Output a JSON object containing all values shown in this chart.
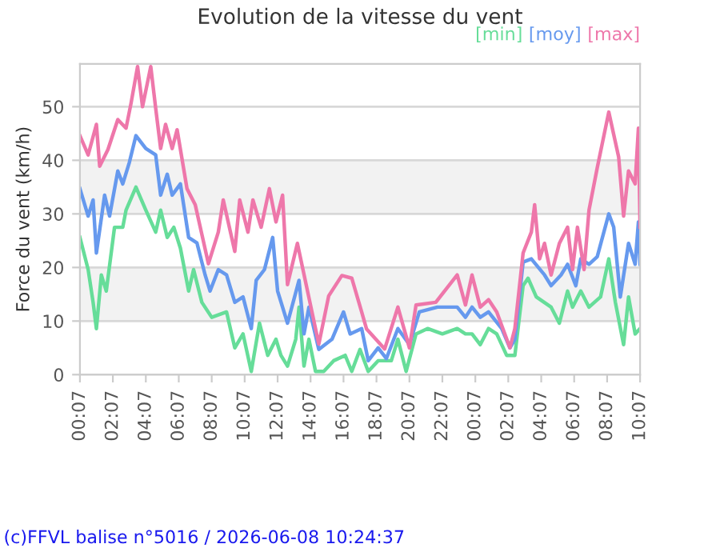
{
  "chart_data": {
    "type": "line",
    "title": "Evolution de la vitesse du vent",
    "ylabel": "Force du vent (km/h)",
    "xlim": [
      "2026-06-07T00:07",
      "2026-06-08T10:07"
    ],
    "ylim": [
      0,
      58
    ],
    "xticks": [
      {
        "value": "2026-06-07T00:07",
        "label": "00:07"
      },
      {
        "value": "2026-06-07T02:07",
        "label": "02:07"
      },
      {
        "value": "2026-06-07T04:07",
        "label": "04:07"
      },
      {
        "value": "2026-06-07T06:07",
        "label": "06:07"
      },
      {
        "value": "2026-06-07T08:07",
        "label": "08:07"
      },
      {
        "value": "2026-06-07T10:07",
        "label": "10:07"
      },
      {
        "value": "2026-06-07T12:07",
        "label": "12:07"
      },
      {
        "value": "2026-06-07T14:07",
        "label": "14:07"
      },
      {
        "value": "2026-06-07T16:07",
        "label": "16:07"
      },
      {
        "value": "2026-06-07T18:07",
        "label": "18:07"
      },
      {
        "value": "2026-06-07T20:07",
        "label": "20:07"
      },
      {
        "value": "2026-06-07T22:07",
        "label": "22:07"
      },
      {
        "value": "2026-06-08T00:07",
        "label": "00:07"
      },
      {
        "value": "2026-06-08T02:07",
        "label": "02:07"
      },
      {
        "value": "2026-06-08T04:07",
        "label": "04:07"
      },
      {
        "value": "2026-06-08T06:07",
        "label": "06:07"
      },
      {
        "value": "2026-06-08T08:07",
        "label": "08:07"
      },
      {
        "value": "2026-06-08T10:07",
        "label": "10:07"
      }
    ],
    "yticks": [
      0,
      10,
      20,
      30,
      40,
      50
    ],
    "grid": "y",
    "legend": "top right",
    "bands": [
      {
        "axis": "y",
        "from": 10,
        "to": 20,
        "color": "#f2f2f2"
      },
      {
        "axis": "y",
        "from": 30,
        "to": 40,
        "color": "#f2f2f2"
      }
    ],
    "series": [
      {
        "name": "[min]",
        "color": "#66dd99",
        "x": [
          "2026-06-07T00:07",
          "2026-06-07T00:37",
          "2026-06-07T00:55",
          "2026-06-07T01:07",
          "2026-06-07T01:25",
          "2026-06-07T01:43",
          "2026-06-07T02:13",
          "2026-06-07T02:43",
          "2026-06-07T02:55",
          "2026-06-07T03:31",
          "2026-06-07T04:07",
          "2026-06-07T04:43",
          "2026-06-07T05:01",
          "2026-06-07T05:25",
          "2026-06-07T05:49",
          "2026-06-07T06:13",
          "2026-06-07T06:43",
          "2026-06-07T07:01",
          "2026-06-07T07:31",
          "2026-06-07T08:07",
          "2026-06-07T09:01",
          "2026-06-07T09:31",
          "2026-06-07T10:01",
          "2026-06-07T10:31",
          "2026-06-07T11:01",
          "2026-06-07T11:31",
          "2026-06-07T12:01",
          "2026-06-07T12:19",
          "2026-06-07T12:43",
          "2026-06-07T13:13",
          "2026-06-07T13:25",
          "2026-06-07T13:43",
          "2026-06-07T14:01",
          "2026-06-07T14:25",
          "2026-06-07T14:55",
          "2026-06-07T15:31",
          "2026-06-07T16:13",
          "2026-06-07T16:37",
          "2026-06-07T17:07",
          "2026-06-07T17:37",
          "2026-06-07T18:13",
          "2026-06-07T19:01",
          "2026-06-07T19:25",
          "2026-06-07T19:55",
          "2026-06-07T20:31",
          "2026-06-07T21:13",
          "2026-06-07T22:07",
          "2026-06-07T23:01",
          "2026-06-07T23:31",
          "2026-06-07T23:55",
          "2026-06-08T00:25",
          "2026-06-08T00:55",
          "2026-06-08T01:25",
          "2026-06-08T02:01",
          "2026-06-08T02:31",
          "2026-06-08T03:01",
          "2026-06-08T03:19",
          "2026-06-08T03:49",
          "2026-06-08T04:43",
          "2026-06-08T05:13",
          "2026-06-08T05:43",
          "2026-06-08T06:01",
          "2026-06-08T06:31",
          "2026-06-08T07:01",
          "2026-06-08T07:43",
          "2026-06-08T08:13",
          "2026-06-08T08:37",
          "2026-06-08T09:07",
          "2026-06-08T09:25",
          "2026-06-08T09:49",
          "2026-06-08T10:07"
        ],
        "values": [
          25.6,
          19.6,
          13.5,
          8.6,
          18.6,
          15.6,
          27.5,
          27.5,
          30.7,
          35,
          30.7,
          26.6,
          30.7,
          25.6,
          27.5,
          23.6,
          15.6,
          19.6,
          13.5,
          10.7,
          11.7,
          5,
          7.6,
          0.6,
          9.6,
          3.6,
          6.6,
          3.6,
          1.6,
          6.6,
          12.6,
          1.6,
          6.6,
          0.6,
          0.6,
          2.6,
          3.6,
          0.6,
          4.7,
          0.6,
          2.6,
          2.6,
          6.6,
          0.6,
          7.6,
          8.6,
          7.6,
          8.6,
          7.6,
          7.6,
          5.6,
          8.6,
          7.6,
          3.6,
          3.6,
          16.6,
          18,
          14.5,
          12.6,
          9.6,
          15.6,
          12.6,
          15.6,
          12.6,
          14.5,
          21.6,
          13.5,
          5.6,
          14.5,
          7.6,
          8.6
        ]
      },
      {
        "name": "[moy]",
        "color": "#6699ee",
        "x": [
          "2026-06-07T00:07",
          "2026-06-07T00:37",
          "2026-06-07T00:55",
          "2026-06-07T01:07",
          "2026-06-07T01:37",
          "2026-06-07T01:55",
          "2026-06-07T02:25",
          "2026-06-07T02:43",
          "2026-06-07T03:07",
          "2026-06-07T03:31",
          "2026-06-07T04:07",
          "2026-06-07T04:43",
          "2026-06-07T05:01",
          "2026-06-07T05:25",
          "2026-06-07T05:43",
          "2026-06-07T06:13",
          "2026-06-07T06:43",
          "2026-06-07T07:13",
          "2026-06-07T07:43",
          "2026-06-07T08:01",
          "2026-06-07T08:31",
          "2026-06-07T09:01",
          "2026-06-07T09:31",
          "2026-06-07T10:01",
          "2026-06-07T10:31",
          "2026-06-07T10:49",
          "2026-06-07T11:19",
          "2026-06-07T11:49",
          "2026-06-07T12:07",
          "2026-06-07T12:43",
          "2026-06-07T13:25",
          "2026-06-07T13:43",
          "2026-06-07T14:01",
          "2026-06-07T14:37",
          "2026-06-07T15:25",
          "2026-06-07T16:07",
          "2026-06-07T16:31",
          "2026-06-07T17:13",
          "2026-06-07T17:37",
          "2026-06-07T18:13",
          "2026-06-07T18:43",
          "2026-06-07T19:25",
          "2026-06-07T20:07",
          "2026-06-07T20:43",
          "2026-06-07T21:49",
          "2026-06-07T23:01",
          "2026-06-07T23:31",
          "2026-06-07T23:55",
          "2026-06-08T00:25",
          "2026-06-08T00:55",
          "2026-06-08T01:43",
          "2026-06-08T02:13",
          "2026-06-08T02:31",
          "2026-06-08T03:01",
          "2026-06-08T03:31",
          "2026-06-08T04:19",
          "2026-06-08T04:43",
          "2026-06-08T05:19",
          "2026-06-08T05:43",
          "2026-06-08T06:13",
          "2026-06-08T06:31",
          "2026-06-08T07:01",
          "2026-06-08T07:31",
          "2026-06-08T08:13",
          "2026-06-08T08:31",
          "2026-06-08T08:55",
          "2026-06-08T09:25",
          "2026-06-08T09:49",
          "2026-06-08T10:01",
          "2026-06-08T10:07"
        ],
        "values": [
          34.7,
          29.6,
          32.6,
          22.7,
          33.5,
          29.6,
          38,
          35.6,
          39.6,
          44.6,
          42.2,
          41,
          33.5,
          37.4,
          33.5,
          35.6,
          25.6,
          24.6,
          18.6,
          15.6,
          19.6,
          18.6,
          13.5,
          14.5,
          8.6,
          17.6,
          19.6,
          25.6,
          15.6,
          9.6,
          17.6,
          7.6,
          12.6,
          4.7,
          6.6,
          11.7,
          7.6,
          8.6,
          2.6,
          5,
          3,
          8.6,
          5.6,
          11.7,
          12.6,
          12.6,
          10.7,
          12.6,
          10.7,
          11.7,
          8.6,
          5,
          6.6,
          21,
          21.6,
          18.6,
          16.6,
          18.6,
          20.6,
          16.6,
          21.6,
          20.6,
          22,
          30,
          27.5,
          14.5,
          24.5,
          20.6,
          28.5,
          20.6
        ]
      },
      {
        "name": "[max]",
        "color": "#ee77aa",
        "x": [
          "2026-06-07T00:07",
          "2026-06-07T00:37",
          "2026-06-07T01:07",
          "2026-06-07T01:19",
          "2026-06-07T01:49",
          "2026-06-07T02:25",
          "2026-06-07T02:55",
          "2026-06-07T03:13",
          "2026-06-07T03:37",
          "2026-06-07T03:55",
          "2026-06-07T04:25",
          "2026-06-07T04:43",
          "2026-06-07T05:01",
          "2026-06-07T05:19",
          "2026-06-07T05:43",
          "2026-06-07T06:01",
          "2026-06-07T06:37",
          "2026-06-07T07:07",
          "2026-06-07T07:55",
          "2026-06-07T08:31",
          "2026-06-07T08:49",
          "2026-06-07T09:31",
          "2026-06-07T09:49",
          "2026-06-07T10:19",
          "2026-06-07T10:37",
          "2026-06-07T11:07",
          "2026-06-07T11:37",
          "2026-06-07T12:01",
          "2026-06-07T12:25",
          "2026-06-07T12:43",
          "2026-06-07T13:19",
          "2026-06-07T14:37",
          "2026-06-07T15:13",
          "2026-06-07T16:01",
          "2026-06-07T16:37",
          "2026-06-07T17:13",
          "2026-06-07T17:31",
          "2026-06-07T18:37",
          "2026-06-07T19:25",
          "2026-06-07T20:07",
          "2026-06-07T20:31",
          "2026-06-07T21:43",
          "2026-06-07T23:01",
          "2026-06-07T23:31",
          "2026-06-07T23:55",
          "2026-06-08T00:25",
          "2026-06-08T00:55",
          "2026-06-08T01:25",
          "2026-06-08T02:13",
          "2026-06-08T02:31",
          "2026-06-08T03:01",
          "2026-06-08T03:31",
          "2026-06-08T03:43",
          "2026-06-08T04:01",
          "2026-06-08T04:19",
          "2026-06-08T04:43",
          "2026-06-08T05:13",
          "2026-06-08T05:43",
          "2026-06-08T06:01",
          "2026-06-08T06:19",
          "2026-06-08T06:43",
          "2026-06-08T07:01",
          "2026-06-08T07:31",
          "2026-06-08T08:13",
          "2026-06-08T08:49",
          "2026-06-08T09:07",
          "2026-06-08T09:25",
          "2026-06-08T09:49",
          "2026-06-08T10:01",
          "2026-06-08T10:07"
        ],
        "values": [
          44.6,
          41,
          46.7,
          38.9,
          42,
          47.6,
          46,
          50.6,
          57.5,
          50,
          57.5,
          49.7,
          42.2,
          46.7,
          42.2,
          45.7,
          34.7,
          31.7,
          20.7,
          26.6,
          32.6,
          23,
          32.6,
          26.6,
          32.6,
          27.5,
          34.7,
          28.5,
          33.5,
          16.8,
          24.5,
          5.7,
          14.7,
          18.5,
          18,
          11.7,
          8.5,
          4.8,
          12.6,
          5,
          13,
          13.5,
          18.6,
          13,
          18.6,
          12.6,
          14,
          11.7,
          5,
          8.6,
          22.7,
          26.6,
          31.7,
          21.6,
          24.5,
          18.6,
          24.5,
          27.5,
          19.6,
          27.5,
          19.6,
          30.7,
          38.6,
          49,
          40.6,
          29.6,
          38,
          35.6,
          46,
          27.5
        ]
      }
    ],
    "annotations": [
      "(c)FFVL balise n°5016 / 2026-06-08 10:24:37"
    ]
  }
}
